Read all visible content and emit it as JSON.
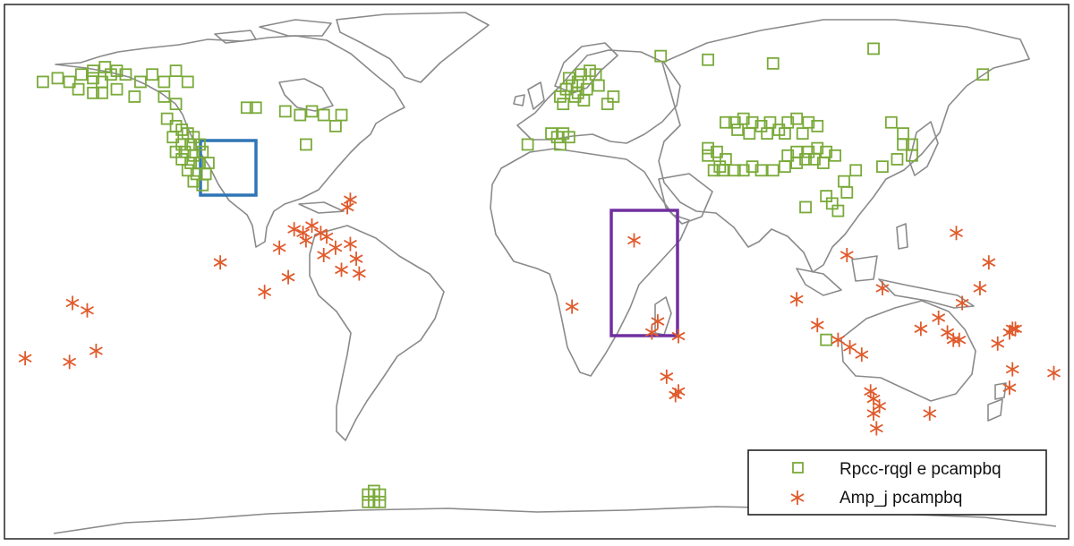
{
  "map": {
    "colors": {
      "background": "#ffffff",
      "frame": "#333333",
      "coastline": "#8a8a8a",
      "square_marker": "#7aaa3a",
      "asterisk_marker": "#e05a2b",
      "region_box_1": "#2e75b6",
      "region_box_2": "#7030a0"
    },
    "legend": {
      "placement": "bottom-right",
      "items": [
        {
          "label": "Rpcc-rqgl e pcampbq",
          "marker": "square",
          "color": "#7aaa3a"
        },
        {
          "label": "Amp_j pcampbq",
          "marker": "asterisk",
          "color": "#e05a2b"
        }
      ]
    },
    "highlight_regions": [
      {
        "name": "",
        "color": "#2e75b6",
        "area": "western North America"
      },
      {
        "name": "",
        "color": "#7030a0",
        "area": "East Africa"
      }
    ]
  },
  "chart_data": {
    "type": "scatter",
    "projection": "equirectangular world map",
    "x_unit": "longitude (deg)",
    "y_unit": "latitude (deg)",
    "xlim": [
      -180,
      180
    ],
    "ylim": [
      -60,
      85
    ],
    "series": [
      {
        "name": "Rpcc-rqgl e pcampbq",
        "marker": "square",
        "color": "#7aaa3a",
        "points": [
          [
            -167,
            64
          ],
          [
            -162,
            65
          ],
          [
            -158,
            64
          ],
          [
            -154,
            66
          ],
          [
            -150,
            65
          ],
          [
            -147,
            64
          ],
          [
            -144,
            66
          ],
          [
            -150,
            67
          ],
          [
            -146,
            68
          ],
          [
            -142,
            67
          ],
          [
            -139,
            66
          ],
          [
            -155,
            62
          ],
          [
            -150,
            61
          ],
          [
            -147,
            61
          ],
          [
            -142,
            62
          ],
          [
            -136,
            60
          ],
          [
            -134,
            64
          ],
          [
            -130,
            66
          ],
          [
            -126,
            64
          ],
          [
            -122,
            67
          ],
          [
            -118,
            64
          ],
          [
            -126,
            60
          ],
          [
            -122,
            58
          ],
          [
            -125,
            54
          ],
          [
            -122,
            52
          ],
          [
            -120,
            51
          ],
          [
            -118,
            50
          ],
          [
            -116,
            49
          ],
          [
            -123,
            49
          ],
          [
            -120,
            47
          ],
          [
            -117,
            47
          ],
          [
            -114,
            47
          ],
          [
            -122,
            45
          ],
          [
            -119,
            45
          ],
          [
            -116,
            44
          ],
          [
            -113,
            45
          ],
          [
            -120,
            43
          ],
          [
            -117,
            42
          ],
          [
            -114,
            42
          ],
          [
            -111,
            42
          ],
          [
            -118,
            40
          ],
          [
            -115,
            39
          ],
          [
            -112,
            39
          ],
          [
            -116,
            37
          ],
          [
            -113,
            36
          ],
          [
            -98,
            57
          ],
          [
            -95,
            57
          ],
          [
            -85,
            56
          ],
          [
            -80,
            55
          ],
          [
            -76,
            56
          ],
          [
            -72,
            55
          ],
          [
            -68,
            52
          ],
          [
            -66,
            55
          ],
          [
            -78,
            47
          ],
          [
            -57,
            -48
          ],
          [
            -55,
            -47
          ],
          [
            -53,
            -48
          ],
          [
            -55,
            -50
          ],
          [
            -57,
            -50
          ],
          [
            -53,
            -50
          ],
          [
            8,
            60
          ],
          [
            10,
            62
          ],
          [
            12,
            63
          ],
          [
            14,
            64
          ],
          [
            15,
            66
          ],
          [
            18,
            67
          ],
          [
            20,
            66
          ],
          [
            21,
            63
          ],
          [
            17,
            62
          ],
          [
            13,
            60
          ],
          [
            9,
            58
          ],
          [
            16,
            59
          ],
          [
            11,
            65
          ],
          [
            14,
            61
          ],
          [
            24,
            58
          ],
          [
            26,
            60
          ],
          [
            -3,
            47
          ],
          [
            5,
            50
          ],
          [
            7,
            49
          ],
          [
            9,
            50
          ],
          [
            11,
            49
          ],
          [
            8,
            47
          ],
          [
            42,
            71
          ],
          [
            58,
            70
          ],
          [
            80,
            69
          ],
          [
            114,
            73
          ],
          [
            64,
            53
          ],
          [
            67,
            53
          ],
          [
            70,
            54
          ],
          [
            73,
            53
          ],
          [
            76,
            52
          ],
          [
            79,
            53
          ],
          [
            82,
            51
          ],
          [
            85,
            53
          ],
          [
            88,
            54
          ],
          [
            92,
            53
          ],
          [
            95,
            52
          ],
          [
            68,
            51
          ],
          [
            72,
            50
          ],
          [
            78,
            50
          ],
          [
            84,
            50
          ],
          [
            90,
            50
          ],
          [
            58,
            44
          ],
          [
            61,
            45
          ],
          [
            64,
            43
          ],
          [
            58,
            46
          ],
          [
            62,
            41
          ],
          [
            60,
            40
          ],
          [
            63,
            40
          ],
          [
            67,
            40
          ],
          [
            70,
            40
          ],
          [
            73,
            41
          ],
          [
            76,
            40
          ],
          [
            80,
            40
          ],
          [
            84,
            41
          ],
          [
            88,
            42
          ],
          [
            91,
            43
          ],
          [
            85,
            44
          ],
          [
            88,
            45
          ],
          [
            92,
            45
          ],
          [
            95,
            46
          ],
          [
            98,
            45
          ],
          [
            101,
            44
          ],
          [
            94,
            43
          ],
          [
            97,
            42
          ],
          [
            120,
            53
          ],
          [
            124,
            50
          ],
          [
            124,
            47
          ],
          [
            127,
            47
          ],
          [
            127,
            44
          ],
          [
            122,
            43
          ],
          [
            117,
            41
          ],
          [
            108,
            40
          ],
          [
            104,
            37
          ],
          [
            100,
            31
          ],
          [
            105,
            34
          ],
          [
            98,
            33
          ],
          [
            102,
            29
          ],
          [
            91,
            30
          ],
          [
            151,
            66
          ],
          [
            98,
            -6
          ]
        ]
      },
      {
        "name": "Amp_j pcampbq",
        "marker": "asterisk",
        "color": "#e05a2b",
        "points": [
          [
            -64,
            30
          ],
          [
            -63,
            32
          ],
          [
            -82,
            24
          ],
          [
            -79,
            23
          ],
          [
            -76,
            25
          ],
          [
            -73,
            23
          ],
          [
            -71,
            22
          ],
          [
            -68,
            19
          ],
          [
            -63,
            20
          ],
          [
            -61,
            16
          ],
          [
            -60,
            12
          ],
          [
            -78,
            21
          ],
          [
            -72,
            17
          ],
          [
            -66,
            13
          ],
          [
            -87,
            19
          ],
          [
            -107,
            15
          ],
          [
            -92,
            7
          ],
          [
            -84,
            11
          ],
          [
            -157,
            4
          ],
          [
            -152,
            2
          ],
          [
            -173,
            -11
          ],
          [
            -158,
            -12
          ],
          [
            -149,
            -9
          ],
          [
            12,
            3
          ],
          [
            33,
            21
          ],
          [
            39,
            -4
          ],
          [
            41,
            -1
          ],
          [
            48,
            -5
          ],
          [
            44,
            -16
          ],
          [
            47,
            -21
          ],
          [
            48,
            -20
          ],
          [
            105,
            17
          ],
          [
            117,
            8
          ],
          [
            88,
            5
          ],
          [
            95,
            -2
          ],
          [
            102,
            -6
          ],
          [
            106,
            -8
          ],
          [
            110,
            -10
          ],
          [
            113,
            -20
          ],
          [
            114,
            -22
          ],
          [
            114,
            -26
          ],
          [
            116,
            -24
          ],
          [
            115,
            -30
          ],
          [
            133,
            -26
          ],
          [
            130,
            -3
          ],
          [
            136,
            0
          ],
          [
            139,
            -4
          ],
          [
            141,
            -6
          ],
          [
            143,
            -6
          ],
          [
            150,
            8
          ],
          [
            156,
            -7
          ],
          [
            160,
            -4
          ],
          [
            161,
            -3
          ],
          [
            162,
            -3
          ],
          [
            161,
            -14
          ],
          [
            160,
            -19
          ],
          [
            175,
            -15
          ],
          [
            153,
            15
          ],
          [
            142,
            23
          ],
          [
            144,
            4
          ]
        ]
      }
    ]
  }
}
